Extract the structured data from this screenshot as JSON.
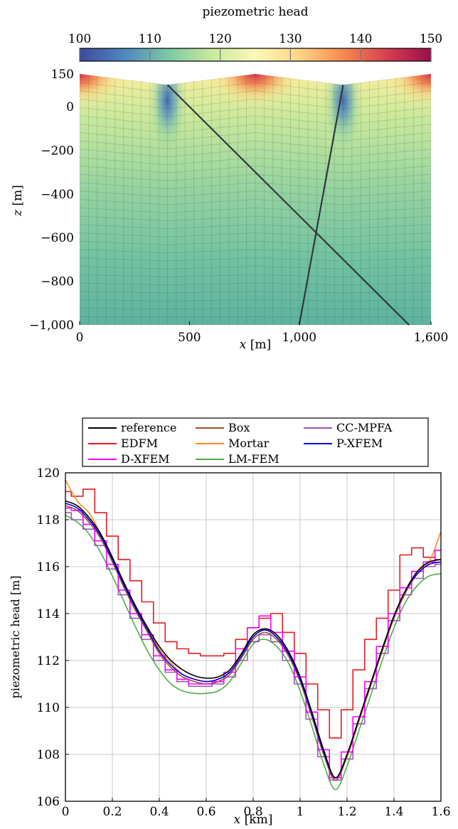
{
  "chart_data": [
    {
      "type": "heatmap",
      "colorbar": {
        "label": "piezometric head",
        "range": [
          100,
          150
        ],
        "ticks": [
          "100",
          "110",
          "120",
          "130",
          "140",
          "150"
        ],
        "colormap": [
          "#3e4a9c",
          "#4f86be",
          "#7ac7a4",
          "#c8e99c",
          "#fcf8b8",
          "#fdd486",
          "#f6894f",
          "#d63e4f",
          "#9b0e4b"
        ]
      },
      "xlabel_var": "x",
      "xlabel_unit": "[m]",
      "ylabel_var": "z",
      "ylabel_unit": "[m]",
      "xlim": [
        0,
        1600
      ],
      "ylim": [
        -1000,
        150
      ],
      "x_ticks": [
        {
          "value": 0,
          "label": "0"
        },
        {
          "value": 500,
          "label": "500"
        },
        {
          "value": 1000,
          "label": "1,000"
        },
        {
          "value": 1600,
          "label": "1,600"
        }
      ],
      "y_ticks": [
        {
          "value": 150,
          "label": "150"
        },
        {
          "value": 0,
          "label": "0"
        },
        {
          "value": -200,
          "label": "−200"
        },
        {
          "value": -400,
          "label": "−400"
        },
        {
          "value": -600,
          "label": "−600"
        },
        {
          "value": -800,
          "label": "−800"
        },
        {
          "value": -1000,
          "label": "−1,000"
        }
      ],
      "top_surface": [
        [
          0,
          150
        ],
        [
          400,
          100
        ],
        [
          800,
          150
        ],
        [
          1200,
          100
        ],
        [
          1600,
          150
        ]
      ],
      "fractures": [
        {
          "from": [
            400,
            100
          ],
          "to": [
            1500,
            -1000
          ]
        },
        {
          "from": [
            1200,
            100
          ],
          "to": [
            1000,
            -1000
          ]
        }
      ],
      "grid": true
    },
    {
      "type": "line",
      "xlabel_var": "x",
      "xlabel_unit": "[km]",
      "ylabel": "piezometric head [m]",
      "xlim": [
        0,
        1.6
      ],
      "ylim": [
        106,
        120
      ],
      "x_ticks": [
        "0",
        "0.2",
        "0.4",
        "0.6",
        "0.8",
        "1",
        "1.2",
        "1.4",
        "1.6"
      ],
      "y_ticks": [
        "106",
        "108",
        "110",
        "112",
        "114",
        "116",
        "118",
        "120"
      ],
      "grid": true,
      "legend_position": "top",
      "series": [
        {
          "name": "reference",
          "color": "#000000",
          "style": "smooth",
          "x": [
            0,
            0.05,
            0.1,
            0.15,
            0.2,
            0.25,
            0.3,
            0.35,
            0.4,
            0.45,
            0.5,
            0.55,
            0.6,
            0.65,
            0.7,
            0.75,
            0.8,
            0.85,
            0.9,
            0.95,
            1.0,
            1.05,
            1.1,
            1.15,
            1.2,
            1.25,
            1.3,
            1.35,
            1.4,
            1.45,
            1.5,
            1.55,
            1.6
          ],
          "y": [
            118.8,
            118.6,
            118.1,
            117.4,
            116.4,
            115.3,
            114.3,
            113.4,
            112.6,
            112.0,
            111.6,
            111.35,
            111.25,
            111.3,
            111.6,
            112.3,
            113.1,
            113.35,
            113.1,
            112.4,
            111.3,
            109.8,
            108.2,
            107.0,
            108.0,
            109.5,
            111.0,
            112.5,
            113.9,
            115.0,
            115.8,
            116.2,
            116.3
          ]
        },
        {
          "name": "Box",
          "color": "#a0522d",
          "style": "smooth",
          "x": [
            0,
            0.05,
            0.1,
            0.15,
            0.2,
            0.25,
            0.3,
            0.35,
            0.4,
            0.45,
            0.5,
            0.55,
            0.6,
            0.65,
            0.7,
            0.75,
            0.8,
            0.85,
            0.9,
            0.95,
            1.0,
            1.05,
            1.1,
            1.15,
            1.2,
            1.25,
            1.3,
            1.35,
            1.4,
            1.45,
            1.5,
            1.55,
            1.6
          ],
          "y": [
            118.6,
            118.4,
            117.9,
            117.2,
            116.2,
            115.1,
            114.1,
            113.2,
            112.3,
            111.7,
            111.3,
            111.1,
            111.0,
            111.1,
            111.4,
            112.1,
            112.9,
            113.2,
            112.9,
            112.2,
            111.1,
            109.6,
            108.0,
            106.9,
            107.9,
            109.4,
            110.9,
            112.4,
            113.8,
            114.9,
            115.7,
            116.1,
            116.2
          ]
        },
        {
          "name": "CC-MPFA",
          "color": "#9b59b6",
          "style": "step",
          "x": [
            0,
            0.05,
            0.1,
            0.15,
            0.2,
            0.25,
            0.3,
            0.35,
            0.4,
            0.45,
            0.5,
            0.55,
            0.6,
            0.65,
            0.7,
            0.75,
            0.8,
            0.85,
            0.9,
            0.95,
            1.0,
            1.05,
            1.1,
            1.15,
            1.2,
            1.25,
            1.3,
            1.35,
            1.4,
            1.45,
            1.5,
            1.55,
            1.6
          ],
          "y": [
            118.3,
            118.0,
            117.6,
            116.9,
            115.9,
            114.8,
            113.8,
            112.9,
            112.0,
            111.5,
            111.1,
            110.9,
            110.9,
            111.0,
            111.3,
            112.0,
            112.8,
            113.1,
            112.8,
            112.0,
            111.0,
            109.5,
            107.9,
            106.9,
            107.8,
            109.3,
            110.8,
            112.3,
            113.7,
            114.8,
            115.5,
            116.0,
            116.1
          ]
        },
        {
          "name": "EDFM",
          "color": "#e41a1c",
          "style": "step",
          "x": [
            0,
            0.05,
            0.1,
            0.15,
            0.2,
            0.25,
            0.3,
            0.35,
            0.4,
            0.45,
            0.5,
            0.55,
            0.6,
            0.65,
            0.7,
            0.75,
            0.8,
            0.85,
            0.9,
            0.95,
            1.0,
            1.05,
            1.1,
            1.15,
            1.2,
            1.25,
            1.3,
            1.35,
            1.4,
            1.45,
            1.5,
            1.55,
            1.6
          ],
          "y": [
            119.2,
            119.0,
            119.3,
            118.3,
            117.3,
            116.3,
            115.4,
            114.5,
            113.6,
            112.8,
            112.5,
            112.3,
            112.2,
            112.2,
            112.3,
            112.9,
            113.4,
            113.8,
            114.0,
            113.2,
            112.3,
            111.0,
            109.9,
            108.7,
            109.9,
            111.6,
            112.9,
            113.8,
            115.0,
            116.5,
            116.8,
            116.4,
            116.3
          ]
        },
        {
          "name": "Mortar",
          "color": "#ff8c1a",
          "style": "smooth",
          "x": [
            0,
            0.05,
            0.1,
            0.15,
            0.2,
            0.25,
            0.3,
            0.35,
            0.4,
            0.45,
            0.5,
            0.55,
            0.6,
            0.65,
            0.7,
            0.75,
            0.8,
            0.85,
            0.9,
            0.95,
            1.0,
            1.05,
            1.1,
            1.15,
            1.2,
            1.25,
            1.3,
            1.35,
            1.4,
            1.45,
            1.5,
            1.55,
            1.6
          ],
          "y": [
            119.7,
            118.8,
            118.3,
            117.4,
            116.4,
            115.3,
            114.3,
            113.4,
            112.5,
            111.9,
            111.4,
            111.2,
            111.1,
            111.2,
            111.5,
            112.2,
            113.0,
            113.3,
            113.0,
            112.3,
            111.2,
            109.7,
            108.1,
            107.0,
            108.0,
            109.5,
            111.0,
            112.5,
            113.9,
            115.0,
            115.8,
            116.2,
            117.5
          ]
        },
        {
          "name": "P-XFEM",
          "color": "#0000e0",
          "style": "smooth",
          "x": [
            0,
            0.05,
            0.1,
            0.15,
            0.2,
            0.25,
            0.3,
            0.35,
            0.4,
            0.45,
            0.5,
            0.55,
            0.6,
            0.65,
            0.7,
            0.75,
            0.8,
            0.85,
            0.9,
            0.95,
            1.0,
            1.05,
            1.1,
            1.15,
            1.2,
            1.25,
            1.3,
            1.35,
            1.4,
            1.45,
            1.5,
            1.55,
            1.6
          ],
          "y": [
            118.7,
            118.5,
            118.0,
            117.3,
            116.3,
            115.2,
            114.2,
            113.3,
            112.4,
            111.8,
            111.4,
            111.2,
            111.1,
            111.2,
            111.5,
            112.2,
            113.0,
            113.3,
            113.0,
            112.3,
            111.2,
            109.7,
            108.1,
            107.0,
            108.0,
            109.5,
            111.0,
            112.5,
            113.9,
            115.0,
            115.7,
            116.1,
            116.2
          ]
        },
        {
          "name": "D-XFEM",
          "color": "#ff00ff",
          "style": "step",
          "x": [
            0,
            0.05,
            0.1,
            0.15,
            0.2,
            0.25,
            0.3,
            0.35,
            0.4,
            0.45,
            0.5,
            0.55,
            0.6,
            0.65,
            0.7,
            0.75,
            0.8,
            0.85,
            0.9,
            0.95,
            1.0,
            1.05,
            1.1,
            1.15,
            1.2,
            1.25,
            1.3,
            1.35,
            1.4,
            1.45,
            1.5,
            1.55,
            1.6
          ],
          "y": [
            118.5,
            118.4,
            117.8,
            117.1,
            116.1,
            115.0,
            114.0,
            113.1,
            112.2,
            111.6,
            111.2,
            111.0,
            111.0,
            111.1,
            111.5,
            112.5,
            113.4,
            113.9,
            113.2,
            112.4,
            111.3,
            109.8,
            108.2,
            107.0,
            108.1,
            109.6,
            111.1,
            112.6,
            114.0,
            115.1,
            115.8,
            116.2,
            116.7
          ]
        },
        {
          "name": "LM-FEM",
          "color": "#4daf4a",
          "style": "smooth",
          "x": [
            0,
            0.05,
            0.1,
            0.15,
            0.2,
            0.25,
            0.3,
            0.35,
            0.4,
            0.45,
            0.5,
            0.55,
            0.6,
            0.65,
            0.7,
            0.75,
            0.8,
            0.85,
            0.9,
            0.95,
            1.0,
            1.05,
            1.1,
            1.15,
            1.2,
            1.25,
            1.3,
            1.35,
            1.4,
            1.45,
            1.5,
            1.55,
            1.6
          ],
          "y": [
            118.2,
            117.9,
            117.4,
            116.6,
            115.6,
            114.5,
            113.4,
            112.4,
            111.6,
            111.0,
            110.7,
            110.6,
            110.6,
            110.7,
            111.1,
            111.9,
            112.7,
            112.9,
            112.6,
            111.9,
            110.7,
            109.2,
            107.6,
            106.5,
            107.5,
            109.0,
            110.5,
            112.0,
            113.4,
            114.5,
            115.2,
            115.6,
            115.7
          ]
        }
      ]
    }
  ]
}
